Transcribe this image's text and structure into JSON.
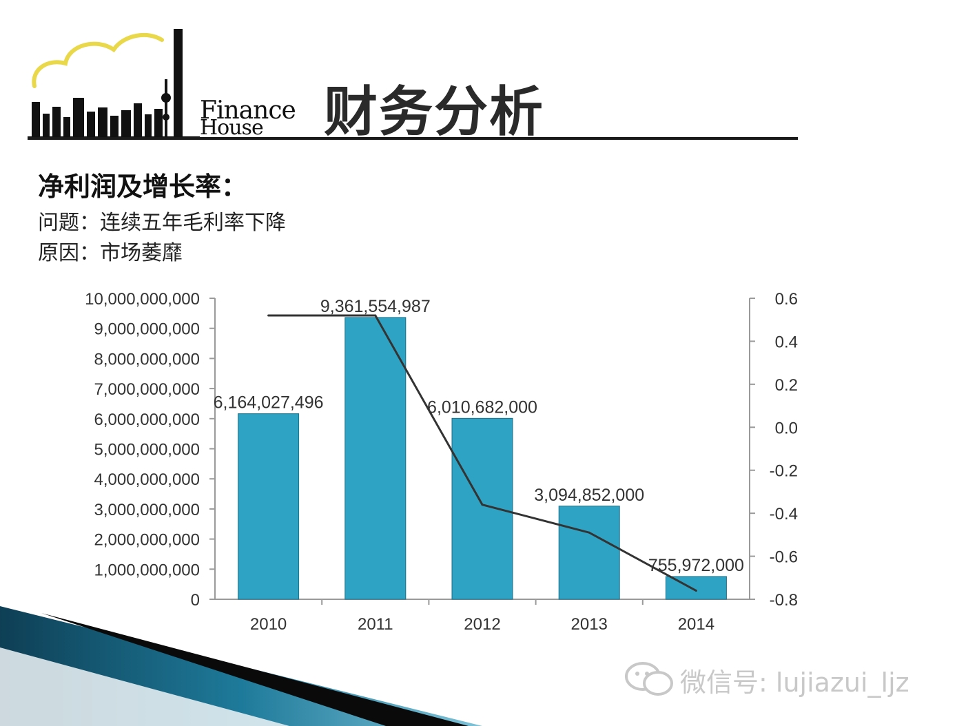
{
  "logo": {
    "finance": "Finance",
    "house": "House"
  },
  "title": "财务分析",
  "heading": "净利润及增长率：",
  "problem": "问题：连续五年毛利率下降",
  "reason": "原因：市场萎靡",
  "watermark": {
    "text": "微信号: lujiazui_ljz",
    "icon": "wechat-icon"
  },
  "colors": {
    "bar": "#2ea3c4",
    "bar_stroke": "#1b6f88",
    "line": "#333333",
    "rule": "#1a1a1a"
  },
  "chart_data": {
    "type": "bar",
    "categories": [
      "2010",
      "2011",
      "2012",
      "2013",
      "2014"
    ],
    "series": [
      {
        "type": "bar",
        "axis": "left",
        "values": [
          6164027496,
          9361554987,
          6010682000,
          3094852000,
          755972000
        ]
      },
      {
        "type": "line",
        "axis": "right",
        "values": [
          0.52,
          0.52,
          -0.36,
          -0.49,
          -0.76
        ]
      }
    ],
    "data_labels": [
      "6,164,027,496",
      "9,361,554,987",
      "6,010,682,000",
      "3,094,852,000",
      "755,972,000"
    ],
    "left_ticks": [
      "0",
      "1,000,000,000",
      "2,000,000,000",
      "3,000,000,000",
      "4,000,000,000",
      "5,000,000,000",
      "6,000,000,000",
      "7,000,000,000",
      "8,000,000,000",
      "9,000,000,000",
      "10,000,000,000"
    ],
    "right_ticks": [
      "-0.8",
      "-0.6",
      "-0.4",
      "-0.2",
      "0.0",
      "0.2",
      "0.4",
      "0.6"
    ],
    "ylim": [
      0,
      10000000000
    ],
    "y2lim": [
      -0.8,
      0.6
    ],
    "grid": false,
    "legend": "none"
  }
}
